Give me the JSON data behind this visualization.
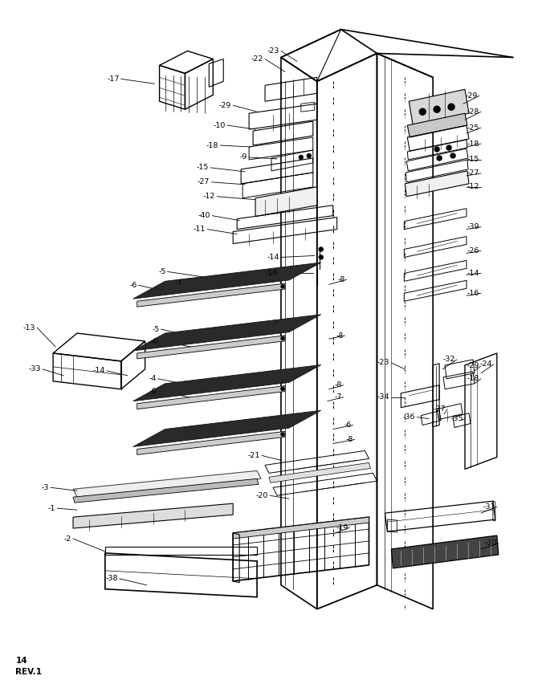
{
  "bg_color": "#ffffff",
  "line_color": "#000000",
  "fig_width": 6.8,
  "fig_height": 8.57,
  "dpi": 100,
  "page_label": "14\nREV.1"
}
